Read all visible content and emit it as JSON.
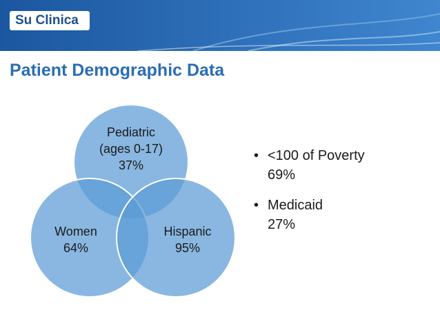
{
  "header": {
    "logo_text": "Su Clinica",
    "title": "Patient Demographic Data",
    "banner_color": "#1f5fa8"
  },
  "venn": {
    "circles": [
      {
        "label": "Pediatric",
        "sublabel": "(ages 0-17)",
        "value": "37%"
      },
      {
        "label": "Women",
        "value": "64%"
      },
      {
        "label": "Hispanic",
        "value": "95%"
      }
    ],
    "circle_color": "#5b9bd5"
  },
  "bullets": [
    {
      "marker": "•",
      "label": "<100 of Poverty",
      "value": "69%"
    },
    {
      "marker": "•",
      "label": "Medicaid",
      "value": "27%"
    }
  ]
}
